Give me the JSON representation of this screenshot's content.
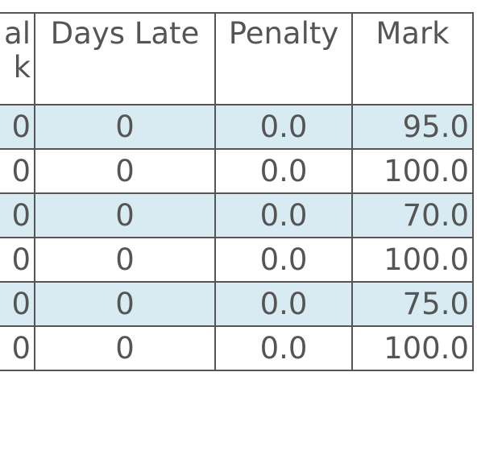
{
  "table": {
    "header": [
      [
        "al",
        "k"
      ],
      "Days Late",
      "Penalty",
      "Mark"
    ],
    "rows": [
      [
        "0",
        "0",
        "0.0",
        "95.0"
      ],
      [
        "0",
        "0",
        "0.0",
        "100.0"
      ],
      [
        "0",
        "0",
        "0.0",
        "70.0"
      ],
      [
        "0",
        "0",
        "0.0",
        "100.0"
      ],
      [
        "0",
        "0",
        "0.0",
        "75.0"
      ],
      [
        "0",
        "0",
        "0.0",
        "100.0"
      ]
    ]
  }
}
